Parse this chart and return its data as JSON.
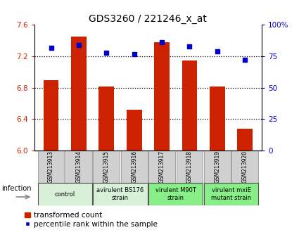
{
  "title": "GDS3260 / 221246_x_at",
  "samples": [
    "GSM213913",
    "GSM213914",
    "GSM213915",
    "GSM213916",
    "GSM213917",
    "GSM213918",
    "GSM213919",
    "GSM213920"
  ],
  "bar_values": [
    6.9,
    7.45,
    6.82,
    6.52,
    7.38,
    7.15,
    6.82,
    6.28
  ],
  "percentile_values": [
    82,
    84,
    78,
    77,
    86,
    83,
    79,
    72
  ],
  "ylim_left": [
    6.0,
    7.6
  ],
  "ylim_right": [
    0,
    100
  ],
  "yticks_left": [
    6.0,
    6.4,
    6.8,
    7.2,
    7.6
  ],
  "yticks_right": [
    0,
    25,
    50,
    75,
    100
  ],
  "bar_color": "#cc2200",
  "dot_color": "#0000cc",
  "bar_width": 0.55,
  "groups": [
    {
      "label": "control",
      "indices": [
        0,
        1
      ],
      "color": "#d8f0d8"
    },
    {
      "label": "avirulent BS176\nstrain",
      "indices": [
        2,
        3
      ],
      "color": "#d8f0d8"
    },
    {
      "label": "virulent M90T\nstrain",
      "indices": [
        4,
        5
      ],
      "color": "#88ee88"
    },
    {
      "label": "virulent mxiE\nmutant strain",
      "indices": [
        6,
        7
      ],
      "color": "#88ee88"
    }
  ],
  "legend_bar_label": "transformed count",
  "legend_dot_label": "percentile rank within the sample",
  "infection_label": "infection",
  "tick_label_color_left": "#cc2200",
  "tick_label_color_right": "#0000cc",
  "sample_box_color": "#d0d0d0",
  "group_border_color": "#555555"
}
